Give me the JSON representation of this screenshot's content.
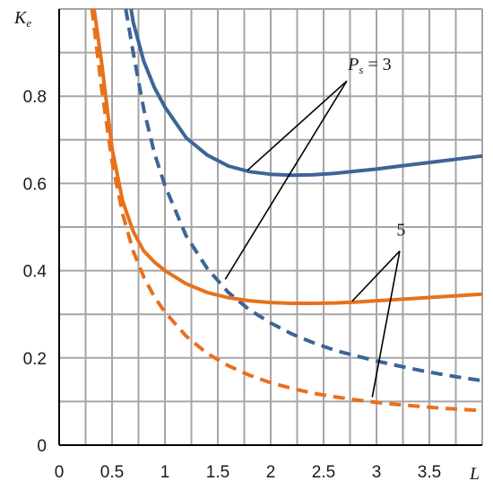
{
  "chart_data": {
    "type": "line",
    "xlabel": "L",
    "ylabel": "Ke",
    "xlim": [
      0,
      4
    ],
    "ylim": [
      0,
      1
    ],
    "grid": true,
    "x_ticks": [
      0,
      0.5,
      1,
      1.5,
      2,
      2.5,
      3,
      3.5
    ],
    "x_tick_labels": [
      "0",
      "0.5",
      "1",
      "1.5",
      "2",
      "2.5",
      "3",
      "3.5"
    ],
    "y_ticks": [
      0,
      0.2,
      0.4,
      0.6,
      0.8
    ],
    "y_tick_labels": [
      "0",
      "0.2",
      "0.4",
      "0.6",
      "0.8"
    ],
    "colors": {
      "ps3": "#3d6596",
      "ps5": "#e8711c",
      "grid": "#a6a6a6",
      "axis": "#000000"
    },
    "series": [
      {
        "key": "ps3_solid",
        "style": "solid",
        "color": "#3d6596",
        "x": [
          0.68,
          0.7,
          0.8,
          0.9,
          1.0,
          1.2,
          1.4,
          1.6,
          1.8,
          2.0,
          2.2,
          2.4,
          2.6,
          2.8,
          3.0,
          3.2,
          3.4,
          3.6,
          3.8,
          4.0
        ],
        "y": [
          1.0,
          0.97,
          0.88,
          0.82,
          0.775,
          0.705,
          0.665,
          0.64,
          0.627,
          0.621,
          0.619,
          0.62,
          0.623,
          0.628,
          0.633,
          0.639,
          0.645,
          0.651,
          0.657,
          0.663
        ]
      },
      {
        "key": "ps3_dashed",
        "style": "dashed",
        "color": "#3d6596",
        "x": [
          0.63,
          0.7,
          0.8,
          0.9,
          1.0,
          1.2,
          1.4,
          1.6,
          1.8,
          2.0,
          2.2,
          2.4,
          2.6,
          2.8,
          3.0,
          3.2,
          3.4,
          3.6,
          3.8,
          4.0
        ],
        "y": [
          1.0,
          0.9,
          0.77,
          0.67,
          0.595,
          0.48,
          0.405,
          0.35,
          0.31,
          0.28,
          0.255,
          0.235,
          0.218,
          0.205,
          0.193,
          0.182,
          0.172,
          0.163,
          0.155,
          0.148
        ]
      },
      {
        "key": "ps5_solid",
        "style": "solid",
        "color": "#e8711c",
        "x": [
          0.33,
          0.4,
          0.5,
          0.6,
          0.7,
          0.8,
          0.9,
          1.0,
          1.2,
          1.4,
          1.6,
          1.8,
          2.0,
          2.2,
          2.4,
          2.6,
          2.8,
          3.0,
          3.2,
          3.4,
          3.6,
          3.8,
          4.0
        ],
        "y": [
          1.0,
          0.88,
          0.68,
          0.56,
          0.49,
          0.445,
          0.42,
          0.4,
          0.37,
          0.35,
          0.338,
          0.331,
          0.327,
          0.325,
          0.325,
          0.326,
          0.328,
          0.331,
          0.334,
          0.337,
          0.34,
          0.343,
          0.346
        ]
      },
      {
        "key": "ps5_dashed",
        "style": "dashed",
        "color": "#e8711c",
        "x": [
          0.31,
          0.4,
          0.5,
          0.6,
          0.7,
          0.8,
          0.9,
          1.0,
          1.2,
          1.4,
          1.6,
          1.8,
          2.0,
          2.2,
          2.4,
          2.6,
          2.8,
          3.0,
          3.2,
          3.4,
          3.6,
          3.8,
          4.0
        ],
        "y": [
          1.0,
          0.82,
          0.65,
          0.53,
          0.445,
          0.385,
          0.34,
          0.305,
          0.25,
          0.21,
          0.182,
          0.16,
          0.143,
          0.13,
          0.119,
          0.111,
          0.104,
          0.098,
          0.093,
          0.089,
          0.085,
          0.082,
          0.079
        ]
      }
    ],
    "annotations": [
      {
        "label_key": "ps3",
        "ps_prefix": "P",
        "ps_sub": "s",
        "ps_suffix": " = 3",
        "anchor": [
          2.72,
          0.835
        ],
        "text_at": [
          2.73,
          0.86
        ],
        "targets": [
          [
            1.78,
            0.63
          ],
          [
            1.57,
            0.38
          ]
        ]
      },
      {
        "label_key": "ps5",
        "text": "5",
        "anchor": [
          3.22,
          0.445
        ],
        "text_at": [
          3.19,
          0.48
        ],
        "targets": [
          [
            2.77,
            0.33
          ],
          [
            2.96,
            0.11
          ]
        ]
      }
    ]
  }
}
